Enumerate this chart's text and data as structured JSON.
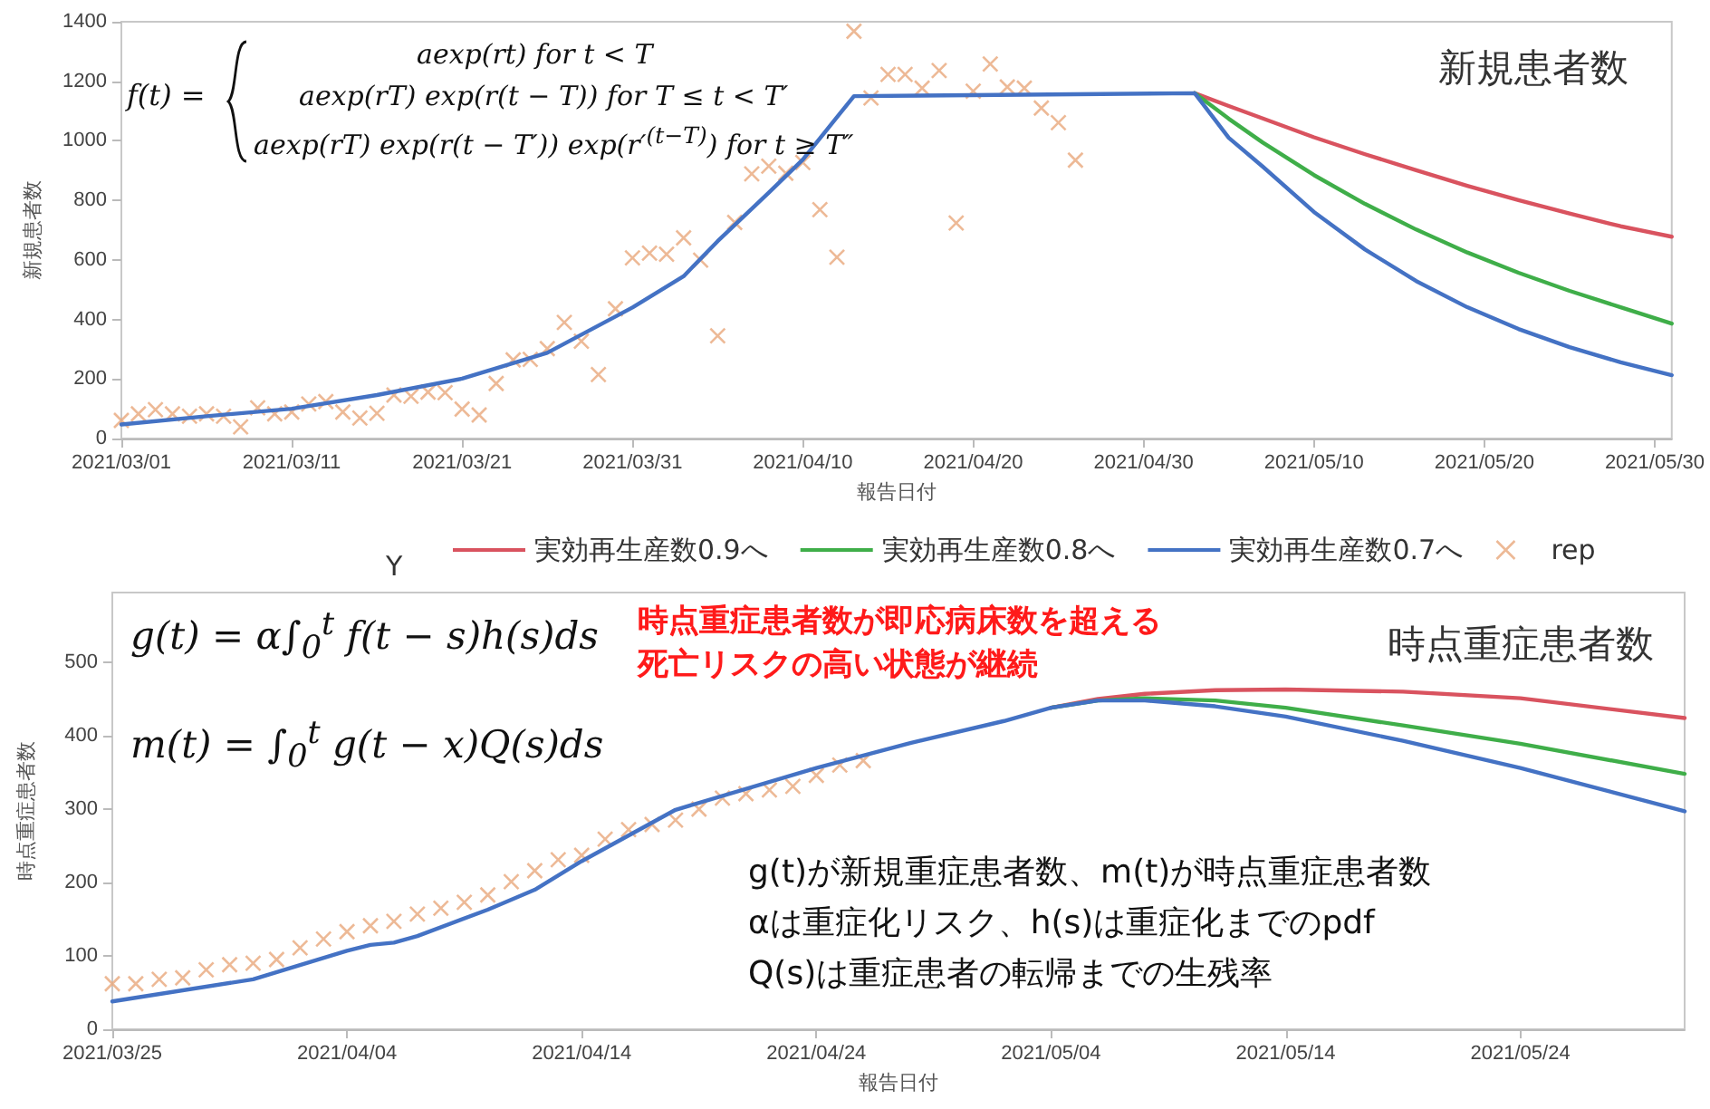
{
  "chart_data": [
    {
      "type": "line",
      "title": "新規患者数",
      "xlabel": "報告日付",
      "ylabel": "新規患者数",
      "legend": "bottom",
      "legend_title": "Y",
      "grid": false,
      "xlim": [
        "2021-03-01",
        "2021-05-31"
      ],
      "xticks": [
        {
          "value": "2021-03-01",
          "label": "2021/03/01"
        },
        {
          "value": "2021-03-11",
          "label": "2021/03/11"
        },
        {
          "value": "2021-03-21",
          "label": "2021/03/21"
        },
        {
          "value": "2021-03-31",
          "label": "2021/03/31"
        },
        {
          "value": "2021-04-10",
          "label": "2021/04/10"
        },
        {
          "value": "2021-04-20",
          "label": "2021/04/20"
        },
        {
          "value": "2021-04-30",
          "label": "2021/04/30"
        },
        {
          "value": "2021-05-10",
          "label": "2021/05/10"
        },
        {
          "value": "2021-05-20",
          "label": "2021/05/20"
        },
        {
          "value": "2021-05-30",
          "label": "2021/05/30"
        }
      ],
      "ylim": [
        0,
        1400
      ],
      "yticks": [
        0,
        200,
        400,
        600,
        800,
        1000,
        1200,
        1400
      ],
      "annotations": [
        "f(t) =",
        "aexp(rt)    for t < T",
        "aexp(rT) exp(r(t − T))  for T ≤ t < T′",
        "aexp(rT) exp(r(t − T′)) exp(r′$^{(t−T)}$) for t ≥ T″"
      ],
      "series": [
        {
          "name": "実効再生産数0.9へ",
          "marker": "none",
          "color": "#d9535f",
          "x": [
            "2021-05-03",
            "2021-05-05",
            "2021-05-07",
            "2021-05-10",
            "2021-05-13",
            "2021-05-16",
            "2021-05-19",
            "2021-05-22",
            "2021-05-25",
            "2021-05-28",
            "2021-05-31"
          ],
          "values": [
            1160,
            1117,
            1075,
            1012,
            955,
            901,
            849,
            801,
            756,
            713,
            678
          ]
        },
        {
          "name": "実効再生産数0.8へ",
          "marker": "none",
          "color": "#3fae49",
          "x": [
            "2021-05-03",
            "2021-05-05",
            "2021-05-07",
            "2021-05-10",
            "2021-05-13",
            "2021-05-16",
            "2021-05-19",
            "2021-05-22",
            "2021-05-25",
            "2021-05-28",
            "2021-05-31"
          ],
          "values": [
            1160,
            1074,
            994,
            885,
            788,
            702,
            625,
            557,
            496,
            441,
            386
          ]
        },
        {
          "name": "実効再生産数0.7へ",
          "marker": "none",
          "color": "#4472c4",
          "x": [
            "2021-03-01",
            "2021-03-06",
            "2021-03-11",
            "2021-03-16",
            "2021-03-21",
            "2021-03-26",
            "2021-03-31",
            "2021-04-03",
            "2021-04-05",
            "2021-04-08",
            "2021-04-10",
            "2021-04-12",
            "2021-04-13",
            "2021-04-23",
            "2021-05-03",
            "2021-05-05",
            "2021-05-07",
            "2021-05-10",
            "2021-05-13",
            "2021-05-16",
            "2021-05-19",
            "2021-05-22",
            "2021-05-25",
            "2021-05-28",
            "2021-05-31"
          ],
          "values": [
            47,
            75,
            100,
            146,
            201,
            288,
            440,
            545,
            663,
            826,
            937,
            1079,
            1150,
            1155,
            1160,
            1010,
            913,
            761,
            635,
            529,
            441,
            368,
            307,
            256,
            213
          ]
        },
        {
          "name": "rep",
          "type": "scatter",
          "marker": "cross",
          "color": "#e8a87c",
          "x": [
            "2021-03-01",
            "2021-03-02",
            "2021-03-03",
            "2021-03-04",
            "2021-03-05",
            "2021-03-06",
            "2021-03-07",
            "2021-03-08",
            "2021-03-09",
            "2021-03-10",
            "2021-03-11",
            "2021-03-12",
            "2021-03-13",
            "2021-03-14",
            "2021-03-15",
            "2021-03-16",
            "2021-03-17",
            "2021-03-18",
            "2021-03-19",
            "2021-03-20",
            "2021-03-21",
            "2021-03-22",
            "2021-03-23",
            "2021-03-24",
            "2021-03-25",
            "2021-03-26",
            "2021-03-27",
            "2021-03-28",
            "2021-03-29",
            "2021-03-30",
            "2021-03-31",
            "2021-04-01",
            "2021-04-02",
            "2021-04-03",
            "2021-04-04",
            "2021-04-05",
            "2021-04-06",
            "2021-04-07",
            "2021-04-08",
            "2021-04-09",
            "2021-04-10",
            "2021-04-11",
            "2021-04-12",
            "2021-04-13",
            "2021-04-14",
            "2021-04-15",
            "2021-04-16",
            "2021-04-17",
            "2021-04-18",
            "2021-04-19",
            "2021-04-20",
            "2021-04-21",
            "2021-04-22",
            "2021-04-23",
            "2021-04-24",
            "2021-04-25",
            "2021-04-26"
          ],
          "values": [
            61,
            83,
            97,
            83,
            75,
            83,
            75,
            39,
            103,
            83,
            89,
            116,
            124,
            89,
            69,
            85,
            146,
            142,
            156,
            154,
            99,
            79,
            185,
            264,
            266,
            302,
            390,
            327,
            215,
            436,
            607,
            623,
            619,
            674,
            599,
            345,
            726,
            889,
            915,
            891,
            927,
            769,
            609,
            1368,
            1144,
            1223,
            1223,
            1177,
            1236,
            724,
            1167,
            1258,
            1181,
            1177,
            1110,
            1061,
            935
          ]
        }
      ]
    },
    {
      "type": "line",
      "title": "時点重症患者数",
      "xlabel": "報告日付",
      "ylabel": "時点重症患者数",
      "grid": false,
      "xlim": [
        "2021-03-25",
        "2021-05-31"
      ],
      "xticks": [
        {
          "value": "2021-03-25",
          "label": "2021/03/25"
        },
        {
          "value": "2021-04-04",
          "label": "2021/04/04"
        },
        {
          "value": "2021-04-14",
          "label": "2021/04/14"
        },
        {
          "value": "2021-04-24",
          "label": "2021/04/24"
        },
        {
          "value": "2021-05-04",
          "label": "2021/05/04"
        },
        {
          "value": "2021-05-14",
          "label": "2021/05/14"
        },
        {
          "value": "2021-05-24",
          "label": "2021/05/24"
        }
      ],
      "ylim": [
        0,
        595
      ],
      "yticks": [
        0,
        100,
        200,
        300,
        400,
        500
      ],
      "annotations": [
        "g(t) = α∫$_{0}$$^{t}$ f(t − s)h(s)ds",
        "m(t) = ∫$_{0}$$^{t}$ g(t − x)Q(s)ds",
        "時点重症患者数が即応病床数を超える",
        "死亡リスクの高い状態が継続",
        "g(t)が新規重症患者数、m(t)が時点重症患者数",
        "αは重症化リスク、h(s)は重症化までのpdf",
        "Q(s)は重症患者の転帰までの生残率"
      ],
      "series": [
        {
          "marker": "none",
          "color": "#d9535f",
          "x": [
            "2021-05-04",
            "2021-05-06",
            "2021-05-08",
            "2021-05-11",
            "2021-05-14",
            "2021-05-19",
            "2021-05-24",
            "2021-05-31"
          ],
          "values": [
            438,
            450,
            457,
            462,
            463,
            460,
            451,
            424
          ]
        },
        {
          "marker": "none",
          "color": "#3fae49",
          "x": [
            "2021-05-04",
            "2021-05-06",
            "2021-05-08",
            "2021-05-11",
            "2021-05-14",
            "2021-05-19",
            "2021-05-24",
            "2021-05-31"
          ],
          "values": [
            438,
            448,
            451,
            448,
            438,
            414,
            389,
            348
          ]
        },
        {
          "marker": "none",
          "color": "#4472c4",
          "x": [
            "2021-03-25",
            "2021-03-31",
            "2021-04-04",
            "2021-04-05",
            "2021-04-06",
            "2021-04-07",
            "2021-04-10",
            "2021-04-12",
            "2021-04-14",
            "2021-04-18",
            "2021-04-24",
            "2021-04-28",
            "2021-05-02",
            "2021-05-04",
            "2021-05-06",
            "2021-05-08",
            "2021-05-11",
            "2021-05-14",
            "2021-05-19",
            "2021-05-24",
            "2021-05-31"
          ],
          "values": [
            38,
            68,
            107,
            115,
            118,
            127,
            163,
            190,
            229,
            299,
            356,
            390,
            420,
            438,
            448,
            448,
            440,
            426,
            393,
            356,
            297
          ]
        },
        {
          "type": "scatter",
          "marker": "cross",
          "color": "#e8a87c",
          "x": [
            "2021-03-25",
            "2021-03-26",
            "2021-03-27",
            "2021-03-28",
            "2021-03-29",
            "2021-03-30",
            "2021-03-31",
            "2021-04-01",
            "2021-04-02",
            "2021-04-03",
            "2021-04-04",
            "2021-04-05",
            "2021-04-06",
            "2021-04-07",
            "2021-04-08",
            "2021-04-09",
            "2021-04-10",
            "2021-04-11",
            "2021-04-12",
            "2021-04-13",
            "2021-04-14",
            "2021-04-15",
            "2021-04-16",
            "2021-04-17",
            "2021-04-18",
            "2021-04-19",
            "2021-04-20",
            "2021-04-21",
            "2021-04-22",
            "2021-04-23",
            "2021-04-24",
            "2021-04-25",
            "2021-04-26"
          ],
          "values": [
            62,
            62,
            68,
            70,
            81,
            88,
            90,
            95,
            111,
            123,
            133,
            141,
            147,
            157,
            165,
            173,
            183,
            201,
            216,
            231,
            237,
            259,
            272,
            279,
            285,
            300,
            315,
            321,
            326,
            331,
            346,
            360,
            366
          ]
        }
      ]
    }
  ]
}
